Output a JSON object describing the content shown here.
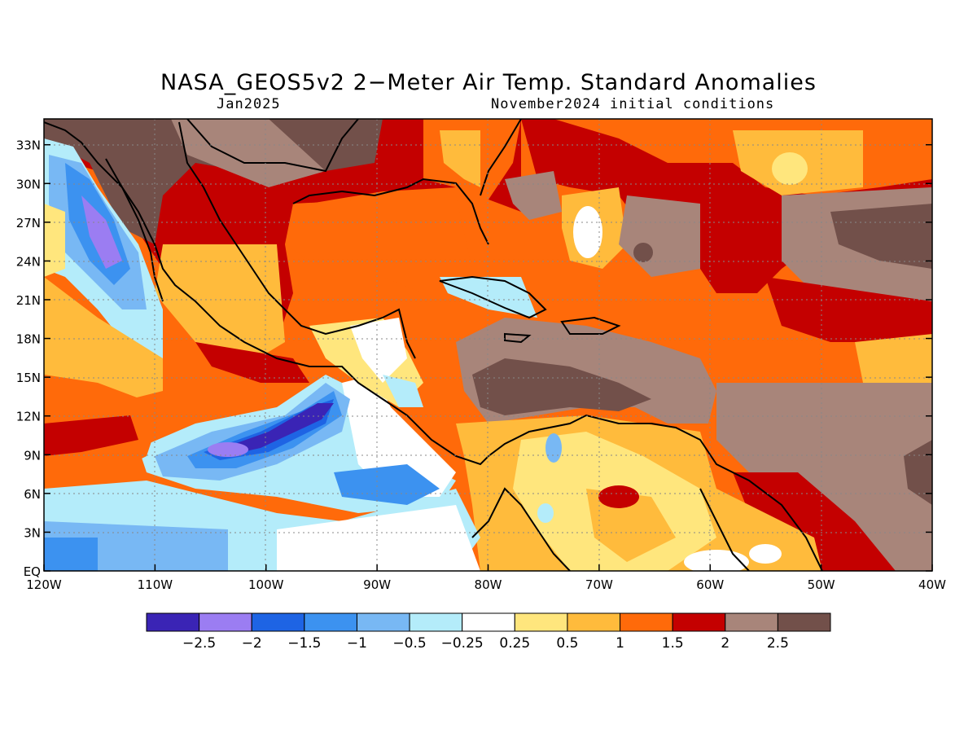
{
  "header": {
    "title": "NASA_GEOS5v2 2−Meter Air Temp. Standard Anomalies",
    "valid_month": "Jan2025",
    "init": "November2024 initial conditions"
  },
  "map": {
    "lon_labels": [
      "120W",
      "110W",
      "100W",
      "90W",
      "80W",
      "70W",
      "60W",
      "50W",
      "40W"
    ],
    "lat_labels": [
      "EQ",
      "3N",
      "6N",
      "9N",
      "12N",
      "15N",
      "18N",
      "21N",
      "24N",
      "27N",
      "30N",
      "33N"
    ],
    "lon_range": [
      -120,
      -40
    ],
    "lat_range": [
      0,
      35
    ]
  },
  "colorbar": {
    "colors": [
      "#3a24b5",
      "#9b7df2",
      "#1e64e4",
      "#3c92f0",
      "#78b8f4",
      "#b4ecfa",
      "#ffffff",
      "#ffe67d",
      "#ffbb3c",
      "#ff6a0a",
      "#c40000",
      "#a8857a",
      "#72504a"
    ],
    "labels": [
      "−2.5",
      "−2",
      "−1.5",
      "−1",
      "−0.5",
      "−0.25",
      "0.25",
      "0.5",
      "1",
      "1.5",
      "2",
      "2.5"
    ]
  }
}
